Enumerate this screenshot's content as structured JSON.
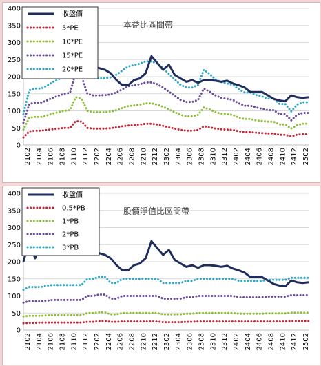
{
  "chart_data": [
    {
      "type": "line",
      "title": "本益比區間帶",
      "xlabel": "",
      "ylabel": "",
      "ylim": [
        0,
        400
      ],
      "yticks": [
        0,
        50,
        100,
        150,
        200,
        250,
        300,
        350,
        400
      ],
      "xtick_labels": [
        "2102",
        "2104",
        "2106",
        "2108",
        "2110",
        "2112",
        "2202",
        "2204",
        "2206",
        "2208",
        "2210",
        "2212",
        "2302",
        "2304",
        "2306",
        "2308",
        "2310",
        "2312",
        "2402",
        "2404",
        "2406",
        "2408",
        "2410",
        "2412",
        "2502"
      ],
      "legend_placement": "top-left",
      "grid": "horizontal",
      "series": [
        {
          "name": "收盤價",
          "color": "#1f2d5a",
          "style": "solid",
          "values": [
            200,
            260,
            215,
            245,
            265,
            250,
            255,
            270,
            265,
            255,
            235,
            245,
            230,
            225,
            220,
            210,
            190,
            175,
            175,
            190,
            195,
            210,
            260,
            240,
            220,
            235,
            205,
            195,
            185,
            190,
            182,
            190,
            190,
            188,
            185,
            188,
            180,
            175,
            168,
            155,
            155,
            155,
            145,
            135,
            130,
            128,
            145,
            140,
            138,
            140
          ]
        },
        {
          "name": "5*PE",
          "color": "#c0283a",
          "style": "dotted",
          "values": [
            22,
            40,
            42,
            42,
            44,
            46,
            48,
            50,
            50,
            70,
            68,
            50,
            48,
            48,
            48,
            49,
            52,
            55,
            57,
            58,
            60,
            62,
            62,
            60,
            56,
            52,
            48,
            44,
            42,
            42,
            44,
            55,
            52,
            48,
            46,
            45,
            44,
            40,
            38,
            38,
            36,
            35,
            34,
            34,
            30,
            30,
            25,
            30,
            32,
            31
          ]
        },
        {
          "name": "10*PE",
          "color": "#8fbf3a",
          "style": "dotted",
          "values": [
            45,
            80,
            82,
            82,
            86,
            92,
            96,
            100,
            102,
            140,
            135,
            100,
            96,
            96,
            96,
            98,
            102,
            108,
            114,
            116,
            118,
            122,
            122,
            118,
            112,
            104,
            96,
            88,
            84,
            84,
            88,
            110,
            104,
            96,
            92,
            90,
            88,
            80,
            76,
            76,
            72,
            70,
            68,
            68,
            60,
            60,
            48,
            58,
            62,
            62
          ]
        },
        {
          "name": "15*PE",
          "color": "#6a4b9a",
          "style": "dotted",
          "values": [
            65,
            120,
            124,
            124,
            130,
            138,
            144,
            150,
            153,
            212,
            200,
            150,
            145,
            145,
            146,
            148,
            154,
            163,
            172,
            175,
            178,
            183,
            183,
            178,
            168,
            156,
            144,
            132,
            126,
            126,
            132,
            165,
            156,
            145,
            138,
            135,
            132,
            122,
            115,
            115,
            110,
            106,
            102,
            102,
            90,
            90,
            72,
            88,
            94,
            94
          ]
        },
        {
          "name": "20*PE",
          "color": "#2fa8c8",
          "style": "dotted",
          "values": [
            90,
            160,
            165,
            165,
            173,
            184,
            192,
            200,
            205,
            280,
            265,
            200,
            195,
            195,
            195,
            198,
            206,
            218,
            230,
            234,
            238,
            245,
            245,
            238,
            225,
            208,
            192,
            176,
            168,
            168,
            176,
            220,
            208,
            192,
            184,
            180,
            176,
            163,
            154,
            154,
            146,
            142,
            136,
            136,
            120,
            120,
            98,
            118,
            125,
            125
          ]
        }
      ]
    },
    {
      "type": "line",
      "title": "股價淨值比區間帶",
      "xlabel": "",
      "ylabel": "",
      "ylim": [
        0,
        400
      ],
      "yticks": [
        0,
        50,
        100,
        150,
        200,
        250,
        300,
        350,
        400
      ],
      "xtick_labels": [
        "2102",
        "2104",
        "2106",
        "2108",
        "2110",
        "2112",
        "2202",
        "2204",
        "2206",
        "2208",
        "2210",
        "2212",
        "2302",
        "2304",
        "2306",
        "2308",
        "2310",
        "2312",
        "2402",
        "2404",
        "2406",
        "2408",
        "2410",
        "2412",
        "2502"
      ],
      "legend_placement": "top-left",
      "grid": "horizontal",
      "series": [
        {
          "name": "收盤價",
          "color": "#1f2d5a",
          "style": "solid",
          "values": [
            200,
            260,
            210,
            245,
            265,
            250,
            255,
            270,
            265,
            255,
            245,
            250,
            230,
            225,
            220,
            210,
            190,
            175,
            175,
            190,
            195,
            210,
            260,
            240,
            220,
            235,
            205,
            195,
            185,
            190,
            182,
            190,
            190,
            188,
            185,
            188,
            180,
            175,
            168,
            155,
            155,
            155,
            145,
            135,
            130,
            128,
            145,
            140,
            138,
            140
          ]
        },
        {
          "name": "0.5*PB",
          "color": "#c0283a",
          "style": "dotted",
          "values": [
            20,
            21,
            21,
            22,
            22,
            22,
            22,
            22,
            22,
            22,
            22,
            24,
            24,
            26,
            26,
            24,
            24,
            25,
            25,
            25,
            25,
            25,
            25,
            25,
            23,
            23,
            23,
            23,
            24,
            24,
            25,
            25,
            25,
            25,
            25,
            25,
            25,
            25,
            25,
            25,
            25,
            25,
            25,
            25,
            25,
            25,
            26,
            26,
            26,
            26
          ]
        },
        {
          "name": "1*PB",
          "color": "#8fbf3a",
          "style": "dotted",
          "values": [
            40,
            42,
            42,
            42,
            43,
            44,
            44,
            44,
            44,
            44,
            44,
            50,
            50,
            52,
            52,
            46,
            46,
            50,
            50,
            50,
            50,
            50,
            50,
            50,
            46,
            46,
            46,
            46,
            48,
            48,
            50,
            50,
            50,
            50,
            50,
            50,
            50,
            48,
            48,
            48,
            48,
            48,
            49,
            49,
            49,
            49,
            51,
            51,
            51,
            51
          ]
        },
        {
          "name": "2*PB",
          "color": "#6a4b9a",
          "style": "dotted",
          "values": [
            80,
            85,
            84,
            84,
            86,
            88,
            88,
            88,
            88,
            88,
            88,
            100,
            100,
            104,
            104,
            92,
            92,
            100,
            100,
            100,
            100,
            100,
            100,
            100,
            92,
            92,
            92,
            92,
            96,
            96,
            100,
            100,
            100,
            100,
            100,
            100,
            100,
            96,
            96,
            96,
            96,
            96,
            98,
            98,
            98,
            98,
            102,
            102,
            102,
            102
          ]
        },
        {
          "name": "3*PB",
          "color": "#2fa8c8",
          "style": "dotted",
          "values": [
            118,
            126,
            126,
            126,
            130,
            132,
            132,
            132,
            132,
            132,
            132,
            150,
            150,
            156,
            156,
            138,
            138,
            150,
            150,
            150,
            150,
            150,
            150,
            150,
            138,
            138,
            138,
            138,
            144,
            144,
            150,
            150,
            150,
            150,
            150,
            150,
            150,
            144,
            144,
            144,
            144,
            144,
            147,
            147,
            147,
            147,
            153,
            153,
            153,
            153
          ]
        }
      ]
    }
  ]
}
